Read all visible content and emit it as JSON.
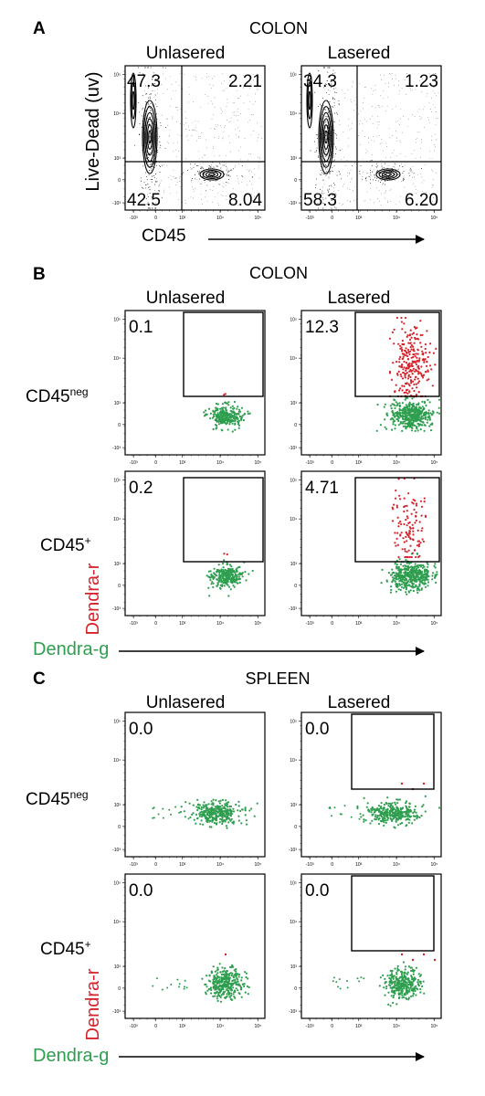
{
  "colors": {
    "dendra_green": "#2e9e4f",
    "dendra_red": "#d4232b",
    "axis": "#000000"
  },
  "panels": [
    {
      "label": "A",
      "title": "COLON"
    },
    {
      "label": "B",
      "title": "COLON"
    },
    {
      "label": "C",
      "title": "SPLEEN"
    }
  ],
  "column_labels": [
    "Unlasered",
    "Lasered"
  ],
  "row_labels": [
    {
      "base": "CD45",
      "sup": "neg"
    },
    {
      "base": "CD45",
      "sup": "+"
    }
  ],
  "axis_labels": {
    "panel_a_y": "Live-Dead (uv)",
    "panel_a_x": "CD45",
    "dendra_y": "Dendra-r",
    "dendra_x": "Dendra-g"
  },
  "ticks": {
    "y": [
      "10⁵",
      "10⁴",
      "10³",
      "0",
      "-10³"
    ],
    "x": [
      "-10³",
      "0",
      "10³",
      "10⁴",
      "10⁵"
    ]
  },
  "chart_data": [
    {
      "type": "scatter",
      "panel": "A",
      "title": "COLON",
      "xlabel": "CD45",
      "ylabel": "Live-Dead (uv)",
      "plots": [
        {
          "column": "Unlasered",
          "quadrants": {
            "upper_left": "47.3",
            "upper_right": "2.21",
            "lower_left": "42.5",
            "lower_right": "8.04"
          }
        },
        {
          "column": "Lasered",
          "quadrants": {
            "upper_left": "34.3",
            "upper_right": "1.23",
            "lower_left": "58.3",
            "lower_right": "6.20"
          }
        }
      ]
    },
    {
      "type": "scatter",
      "panel": "B",
      "title": "COLON",
      "xlabel": "Dendra-g",
      "ylabel": "Dendra-r",
      "plots": [
        {
          "row": "CD45neg",
          "column": "Unlasered",
          "gate_percent": "0.1"
        },
        {
          "row": "CD45neg",
          "column": "Lasered",
          "gate_percent": "12.3"
        },
        {
          "row": "CD45+",
          "column": "Unlasered",
          "gate_percent": "0.2"
        },
        {
          "row": "CD45+",
          "column": "Lasered",
          "gate_percent": "4.71"
        }
      ]
    },
    {
      "type": "scatter",
      "panel": "C",
      "title": "SPLEEN",
      "xlabel": "Dendra-g",
      "ylabel": "Dendra-r",
      "plots": [
        {
          "row": "CD45neg",
          "column": "Unlasered",
          "gate_percent": "0.0"
        },
        {
          "row": "CD45neg",
          "column": "Lasered",
          "gate_percent": "0.0"
        },
        {
          "row": "CD45+",
          "column": "Unlasered",
          "gate_percent": "0.0"
        },
        {
          "row": "CD45+",
          "column": "Lasered",
          "gate_percent": "0.0"
        }
      ]
    }
  ]
}
